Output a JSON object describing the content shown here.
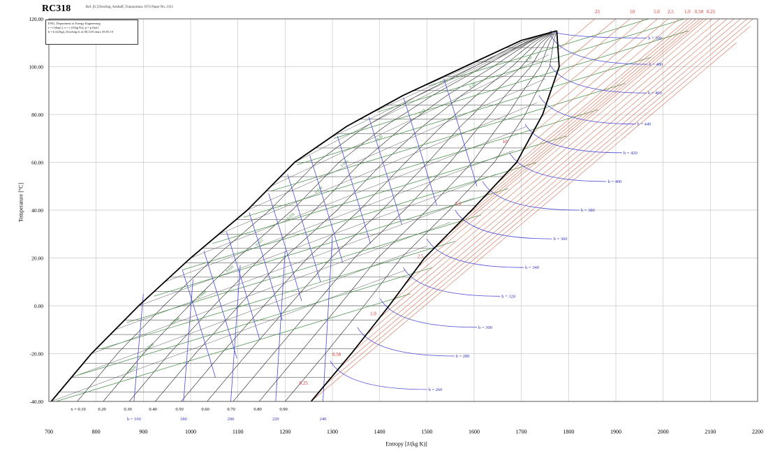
{
  "title": "RC318",
  "subtitle": "Ref. [6.] Dowling, Ashbaff, Transactions 1974 Paper No. 2311",
  "info_lines": [
    "ENG, Department of Energy Engineering",
    "t = t [degC], s = s [J/(kg K)], p = p [bar]",
    "h = h [kJ/kg], Dowling et al. RC318 chart, 09.05.19"
  ],
  "chart_data": {
    "type": "line",
    "title": "RC318",
    "xlabel": "Entropy [J/(kg K)]",
    "ylabel": "Temperature [°C]",
    "xlim": [
      700,
      2200
    ],
    "ylim": [
      -40,
      120
    ],
    "grid": true,
    "x_ticks": [
      "700",
      "800",
      "900",
      "1000",
      "1100",
      "1200",
      "1300",
      "1400",
      "1500",
      "1600",
      "1700",
      "1800",
      "1900",
      "2000",
      "2100",
      "2200"
    ],
    "y_ticks": [
      "-40.00",
      "-20.00",
      "0.00",
      "20.00",
      "40.00",
      "60.00",
      "80.00",
      "100.00",
      "120.00"
    ],
    "critical_point": {
      "s": 1775,
      "t": 115
    },
    "saturation_liquid": [
      {
        "s": 705,
        "t": -40
      },
      {
        "s": 790,
        "t": -20
      },
      {
        "s": 890,
        "t": 0
      },
      {
        "s": 1000,
        "t": 20
      },
      {
        "s": 1120,
        "t": 40
      },
      {
        "s": 1220,
        "t": 60
      },
      {
        "s": 1330,
        "t": 75
      },
      {
        "s": 1450,
        "t": 88
      },
      {
        "s": 1580,
        "t": 100
      },
      {
        "s": 1700,
        "t": 111
      },
      {
        "s": 1775,
        "t": 115
      }
    ],
    "saturation_vapor": [
      {
        "s": 1255,
        "t": -40
      },
      {
        "s": 1340,
        "t": -20
      },
      {
        "s": 1420,
        "t": 0
      },
      {
        "s": 1495,
        "t": 20
      },
      {
        "s": 1595,
        "t": 40
      },
      {
        "s": 1690,
        "t": 60
      },
      {
        "s": 1745,
        "t": 80
      },
      {
        "s": 1780,
        "t": 100
      },
      {
        "s": 1775,
        "t": 115
      }
    ],
    "quality_labels": [
      "x = 0.10",
      "0.20",
      "0.30",
      "0.40",
      "0.50",
      "0.60",
      "0.70",
      "0.80",
      "0.90"
    ],
    "quality_values": [
      0.1,
      0.2,
      0.3,
      0.4,
      0.5,
      0.6,
      0.7,
      0.8,
      0.9
    ],
    "enthalpy_bottom": [
      {
        "s": 880,
        "label": "h = 160"
      },
      {
        "s": 985,
        "label": "180"
      },
      {
        "s": 1085,
        "label": "200"
      },
      {
        "s": 1180,
        "label": "220"
      },
      {
        "s": 1280,
        "label": "240"
      }
    ],
    "enthalpy_vapor_labels": [
      {
        "t": -35,
        "label": "h = 260"
      },
      {
        "t": -21,
        "label": "h = 280"
      },
      {
        "t": -9,
        "label": "h = 300"
      },
      {
        "t": 4,
        "label": "h = 320"
      },
      {
        "t": 16,
        "label": "h = 340"
      },
      {
        "t": 28,
        "label": "h = 360"
      },
      {
        "t": 40,
        "label": "h = 380"
      },
      {
        "t": 52,
        "label": "h = 400"
      },
      {
        "t": 64,
        "label": "h = 420"
      },
      {
        "t": 76,
        "label": "h = 440"
      },
      {
        "t": 89,
        "label": "h = 460"
      },
      {
        "t": 101,
        "label": "h = 480"
      },
      {
        "t": 112,
        "label": "h = 500"
      }
    ],
    "pressure_labels": [
      {
        "label": "0.25",
        "s": 1230,
        "t": -33
      },
      {
        "label": "0.50",
        "s": 1300,
        "t": -21
      },
      {
        "label": "1.0",
        "s": 1380,
        "t": -4
      },
      {
        "label": "2.5",
        "s": 1480,
        "t": 20
      },
      {
        "label": "5.0",
        "s": 1560,
        "t": 42
      },
      {
        "label": "10",
        "s": 1660,
        "t": 68
      }
    ],
    "top_pressure_labels": [
      "25",
      "10",
      "5.0",
      "2.5",
      "1.0",
      "0.50",
      "0.25"
    ],
    "specific_volume_labels": [
      "v = 0.0020",
      "0.0030",
      "0.0040",
      "0.0060",
      "0.010",
      "0.015",
      "0.020",
      "0.030",
      "0.050",
      "0.10",
      "0.15",
      "0.20",
      "0.30"
    ]
  }
}
